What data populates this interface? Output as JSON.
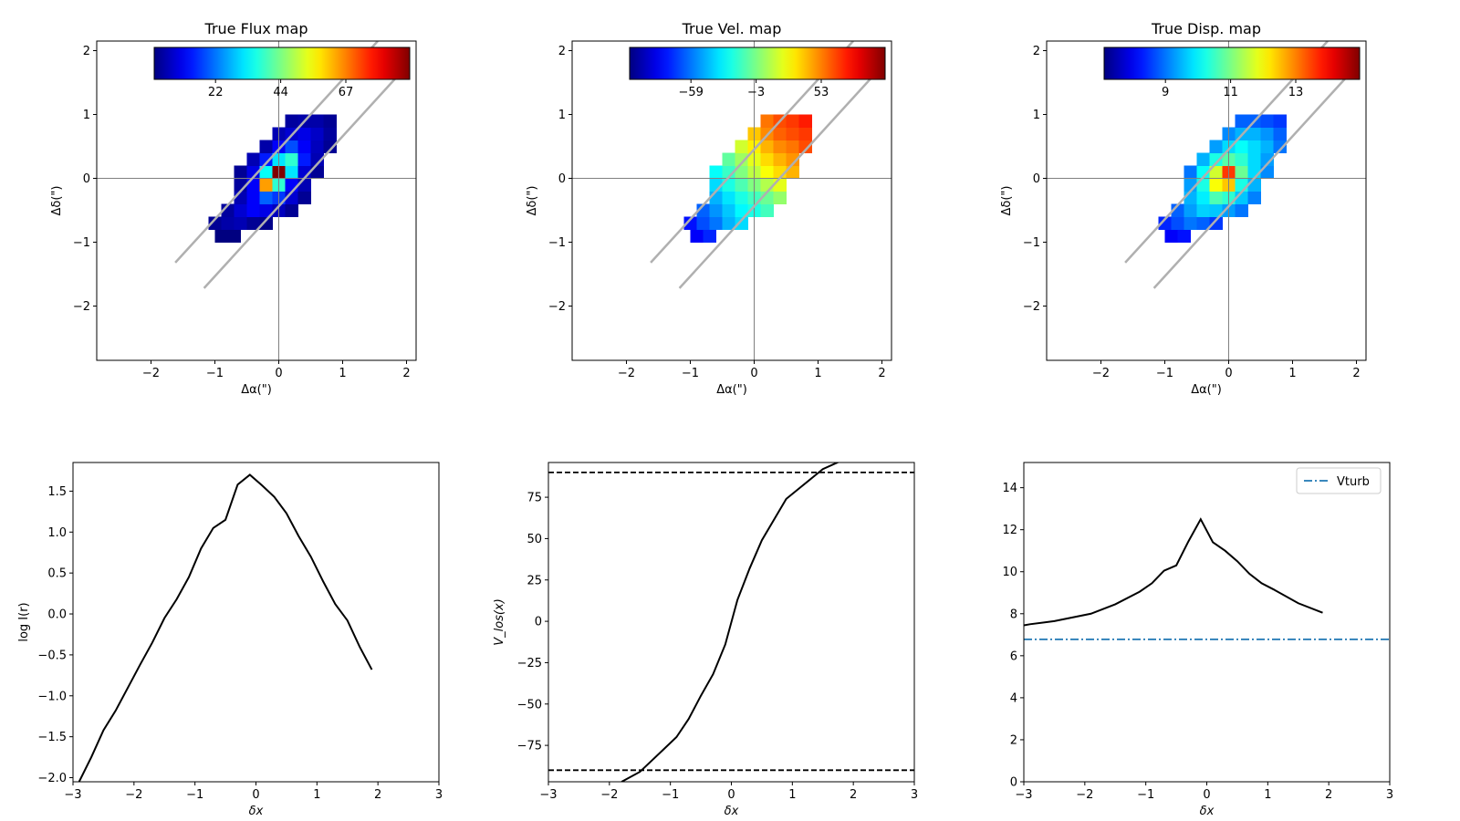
{
  "chart_data": [
    {
      "type": "heatmap",
      "title": "True Flux map",
      "xlabel": "Δα(\")",
      "ylabel": "Δδ(\")",
      "xlim": [
        -2.85,
        2.15
      ],
      "ylim": [
        -2.85,
        2.15
      ],
      "xticks": [
        -2,
        -1,
        0,
        1,
        2
      ],
      "yticks": [
        -2,
        -1,
        0,
        1,
        2
      ],
      "colormap": "jet",
      "colorbar_ticks": [
        "22",
        "44",
        "67"
      ],
      "colorbar_tick_fraction": [
        0.24,
        0.495,
        0.75
      ],
      "colorbar_location": "top",
      "pixel_size": 0.2,
      "cells": [
        [
          -0.9,
          -0.9,
          0.0
        ],
        [
          -0.7,
          -0.9,
          0.0
        ],
        [
          -1.0,
          -0.7,
          0.02
        ],
        [
          -0.8,
          -0.7,
          0.04
        ],
        [
          -0.6,
          -0.7,
          0.05
        ],
        [
          -0.4,
          -0.7,
          0.02
        ],
        [
          -0.2,
          -0.7,
          0.01
        ],
        [
          -0.8,
          -0.5,
          0.03
        ],
        [
          -0.6,
          -0.5,
          0.08
        ],
        [
          -0.4,
          -0.5,
          0.12
        ],
        [
          -0.2,
          -0.5,
          0.1
        ],
        [
          0.0,
          -0.5,
          0.06
        ],
        [
          0.2,
          -0.5,
          0.02
        ],
        [
          -0.6,
          -0.3,
          0.05
        ],
        [
          -0.4,
          -0.3,
          0.12
        ],
        [
          -0.2,
          -0.3,
          0.22
        ],
        [
          0.0,
          -0.3,
          0.18
        ],
        [
          0.2,
          -0.3,
          0.08
        ],
        [
          0.4,
          -0.3,
          0.02
        ],
        [
          -0.6,
          -0.1,
          0.03
        ],
        [
          -0.4,
          -0.1,
          0.12
        ],
        [
          -0.2,
          -0.1,
          0.72
        ],
        [
          0.0,
          -0.1,
          0.42
        ],
        [
          0.2,
          -0.1,
          0.12
        ],
        [
          0.4,
          -0.1,
          0.05
        ],
        [
          -0.6,
          0.1,
          0.02
        ],
        [
          -0.4,
          0.1,
          0.1
        ],
        [
          -0.2,
          0.1,
          0.38
        ],
        [
          0.0,
          0.1,
          1.0
        ],
        [
          0.2,
          0.1,
          0.35
        ],
        [
          0.4,
          0.1,
          0.08
        ],
        [
          0.6,
          0.1,
          0.02
        ],
        [
          -0.4,
          0.3,
          0.05
        ],
        [
          -0.2,
          0.3,
          0.15
        ],
        [
          0.0,
          0.3,
          0.35
        ],
        [
          0.2,
          0.3,
          0.42
        ],
        [
          0.4,
          0.3,
          0.15
        ],
        [
          0.6,
          0.3,
          0.05
        ],
        [
          -0.2,
          0.5,
          0.04
        ],
        [
          0.0,
          0.5,
          0.12
        ],
        [
          0.2,
          0.5,
          0.2
        ],
        [
          0.4,
          0.5,
          0.12
        ],
        [
          0.6,
          0.5,
          0.06
        ],
        [
          0.8,
          0.5,
          0.02
        ],
        [
          0.0,
          0.7,
          0.05
        ],
        [
          0.2,
          0.7,
          0.08
        ],
        [
          0.4,
          0.7,
          0.1
        ],
        [
          0.6,
          0.7,
          0.07
        ],
        [
          0.8,
          0.7,
          0.03
        ],
        [
          0.2,
          0.9,
          0.03
        ],
        [
          0.4,
          0.9,
          0.04
        ],
        [
          0.6,
          0.9,
          0.04
        ],
        [
          0.8,
          0.9,
          0.02
        ]
      ],
      "slit_lines": [
        {
          "x": [
            -1.62,
            1.55
          ],
          "y": [
            -1.32,
            2.15
          ]
        },
        {
          "x": [
            -1.17,
            1.95
          ],
          "y": [
            -1.72,
            1.7
          ]
        }
      ],
      "crosshair": true
    },
    {
      "type": "heatmap",
      "title": "True Vel. map",
      "xlabel": "Δα(\")",
      "ylabel": "Δδ(\")",
      "xlim": [
        -2.85,
        2.15
      ],
      "ylim": [
        -2.85,
        2.15
      ],
      "xticks": [
        -2,
        -1,
        0,
        1,
        2
      ],
      "yticks": [
        -2,
        -1,
        0,
        1,
        2
      ],
      "colormap": "jet",
      "colorbar_ticks": [
        "−59",
        "−3",
        "53"
      ],
      "colorbar_tick_fraction": [
        0.24,
        0.495,
        0.75
      ],
      "colorbar_location": "top",
      "pixel_size": 0.2,
      "cells": [
        [
          -0.9,
          -0.9,
          0.12
        ],
        [
          -0.7,
          -0.9,
          0.16
        ],
        [
          -1.0,
          -0.7,
          0.14
        ],
        [
          -0.8,
          -0.7,
          0.2
        ],
        [
          -0.6,
          -0.7,
          0.24
        ],
        [
          -0.4,
          -0.7,
          0.3
        ],
        [
          -0.2,
          -0.7,
          0.34
        ],
        [
          -0.8,
          -0.5,
          0.22
        ],
        [
          -0.6,
          -0.5,
          0.27
        ],
        [
          -0.4,
          -0.5,
          0.32
        ],
        [
          -0.2,
          -0.5,
          0.37
        ],
        [
          0.0,
          -0.5,
          0.4
        ],
        [
          0.2,
          -0.5,
          0.44
        ],
        [
          -0.6,
          -0.3,
          0.3
        ],
        [
          -0.4,
          -0.3,
          0.35
        ],
        [
          -0.2,
          -0.3,
          0.4
        ],
        [
          0.0,
          -0.3,
          0.44
        ],
        [
          0.2,
          -0.3,
          0.48
        ],
        [
          0.4,
          -0.3,
          0.52
        ],
        [
          -0.6,
          -0.1,
          0.34
        ],
        [
          -0.4,
          -0.1,
          0.4
        ],
        [
          -0.2,
          -0.1,
          0.45
        ],
        [
          0.0,
          -0.1,
          0.5
        ],
        [
          0.2,
          -0.1,
          0.55
        ],
        [
          0.4,
          -0.1,
          0.6
        ],
        [
          -0.6,
          0.1,
          0.38
        ],
        [
          -0.4,
          0.1,
          0.43
        ],
        [
          -0.2,
          0.1,
          0.5
        ],
        [
          0.0,
          0.1,
          0.56
        ],
        [
          0.2,
          0.1,
          0.62
        ],
        [
          0.4,
          0.1,
          0.66
        ],
        [
          0.6,
          0.1,
          0.7
        ],
        [
          -0.4,
          0.3,
          0.47
        ],
        [
          -0.2,
          0.3,
          0.53
        ],
        [
          0.0,
          0.3,
          0.6
        ],
        [
          0.2,
          0.3,
          0.66
        ],
        [
          0.4,
          0.3,
          0.7
        ],
        [
          0.6,
          0.3,
          0.73
        ],
        [
          -0.2,
          0.5,
          0.58
        ],
        [
          0.0,
          0.5,
          0.64
        ],
        [
          0.2,
          0.5,
          0.7
        ],
        [
          0.4,
          0.5,
          0.74
        ],
        [
          0.6,
          0.5,
          0.76
        ],
        [
          0.8,
          0.5,
          0.8
        ],
        [
          0.0,
          0.7,
          0.68
        ],
        [
          0.2,
          0.7,
          0.74
        ],
        [
          0.4,
          0.7,
          0.78
        ],
        [
          0.6,
          0.7,
          0.8
        ],
        [
          0.8,
          0.7,
          0.82
        ],
        [
          0.2,
          0.9,
          0.76
        ],
        [
          0.4,
          0.9,
          0.8
        ],
        [
          0.6,
          0.9,
          0.82
        ],
        [
          0.8,
          0.9,
          0.85
        ]
      ],
      "slit_lines": [
        {
          "x": [
            -1.62,
            1.55
          ],
          "y": [
            -1.32,
            2.15
          ]
        },
        {
          "x": [
            -1.17,
            1.95
          ],
          "y": [
            -1.72,
            1.7
          ]
        }
      ],
      "crosshair": true
    },
    {
      "type": "heatmap",
      "title": "True Disp. map",
      "xlabel": "Δα(\")",
      "ylabel": "Δδ(\")",
      "xlim": [
        -2.85,
        2.15
      ],
      "ylim": [
        -2.85,
        2.15
      ],
      "xticks": [
        -2,
        -1,
        0,
        1,
        2
      ],
      "yticks": [
        -2,
        -1,
        0,
        1,
        2
      ],
      "colormap": "jet",
      "colorbar_ticks": [
        "9",
        "11",
        "13"
      ],
      "colorbar_tick_fraction": [
        0.24,
        0.495,
        0.75
      ],
      "colorbar_location": "top",
      "pixel_size": 0.2,
      "cells": [
        [
          -0.9,
          -0.9,
          0.12
        ],
        [
          -0.7,
          -0.9,
          0.14
        ],
        [
          -1.0,
          -0.7,
          0.16
        ],
        [
          -0.8,
          -0.7,
          0.2
        ],
        [
          -0.6,
          -0.7,
          0.24
        ],
        [
          -0.4,
          -0.7,
          0.22
        ],
        [
          -0.2,
          -0.7,
          0.18
        ],
        [
          -0.8,
          -0.5,
          0.22
        ],
        [
          -0.6,
          -0.5,
          0.28
        ],
        [
          -0.4,
          -0.5,
          0.33
        ],
        [
          -0.2,
          -0.5,
          0.32
        ],
        [
          0.0,
          -0.5,
          0.28
        ],
        [
          0.2,
          -0.5,
          0.24
        ],
        [
          -0.6,
          -0.3,
          0.3
        ],
        [
          -0.4,
          -0.3,
          0.36
        ],
        [
          -0.2,
          -0.3,
          0.45
        ],
        [
          0.0,
          -0.3,
          0.42
        ],
        [
          0.2,
          -0.3,
          0.32
        ],
        [
          0.4,
          -0.3,
          0.25
        ],
        [
          -0.6,
          -0.1,
          0.28
        ],
        [
          -0.4,
          -0.1,
          0.4
        ],
        [
          -0.2,
          -0.1,
          0.62
        ],
        [
          0.0,
          -0.1,
          0.68
        ],
        [
          0.2,
          -0.1,
          0.4
        ],
        [
          0.4,
          -0.1,
          0.3
        ],
        [
          -0.6,
          0.1,
          0.24
        ],
        [
          -0.4,
          0.1,
          0.38
        ],
        [
          -0.2,
          0.1,
          0.58
        ],
        [
          0.0,
          0.1,
          0.82
        ],
        [
          0.2,
          0.1,
          0.48
        ],
        [
          0.4,
          0.1,
          0.34
        ],
        [
          0.6,
          0.1,
          0.26
        ],
        [
          -0.4,
          0.3,
          0.3
        ],
        [
          -0.2,
          0.3,
          0.4
        ],
        [
          0.0,
          0.3,
          0.46
        ],
        [
          0.2,
          0.3,
          0.42
        ],
        [
          0.4,
          0.3,
          0.34
        ],
        [
          0.6,
          0.3,
          0.28
        ],
        [
          -0.2,
          0.5,
          0.28
        ],
        [
          0.0,
          0.5,
          0.34
        ],
        [
          0.2,
          0.5,
          0.38
        ],
        [
          0.4,
          0.5,
          0.34
        ],
        [
          0.6,
          0.5,
          0.3
        ],
        [
          0.8,
          0.5,
          0.24
        ],
        [
          0.0,
          0.7,
          0.26
        ],
        [
          0.2,
          0.7,
          0.3
        ],
        [
          0.4,
          0.7,
          0.3
        ],
        [
          0.6,
          0.7,
          0.27
        ],
        [
          0.8,
          0.7,
          0.22
        ],
        [
          0.2,
          0.9,
          0.22
        ],
        [
          0.4,
          0.9,
          0.22
        ],
        [
          0.6,
          0.9,
          0.2
        ],
        [
          0.8,
          0.9,
          0.18
        ]
      ],
      "slit_lines": [
        {
          "x": [
            -1.62,
            1.55
          ],
          "y": [
            -1.32,
            2.15
          ]
        },
        {
          "x": [
            -1.17,
            1.95
          ],
          "y": [
            -1.72,
            1.7
          ]
        }
      ],
      "crosshair": true
    },
    {
      "type": "line",
      "title": "",
      "xlabel": "δx",
      "ylabel": "log I(r)",
      "xlim": [
        -3,
        3
      ],
      "ylim": [
        -2.05,
        1.85
      ],
      "xticks": [
        -3,
        -2,
        -1,
        0,
        1,
        2,
        3
      ],
      "yticks": [
        -2.0,
        -1.5,
        -1.0,
        -0.5,
        0.0,
        0.5,
        1.0,
        1.5
      ],
      "ytick_labels": [
        "−2.0",
        "−1.5",
        "−1.0",
        "−0.5",
        "0.0",
        "0.5",
        "1.0",
        "1.5"
      ],
      "series": [
        {
          "x": [
            -2.9,
            -2.7,
            -2.5,
            -2.3,
            -2.1,
            -1.9,
            -1.7,
            -1.5,
            -1.3,
            -1.1,
            -0.9,
            -0.7,
            -0.5,
            -0.3,
            -0.1,
            0.1,
            0.3,
            0.5,
            0.7,
            0.9,
            1.1,
            1.3,
            1.5,
            1.7,
            1.9
          ],
          "y": [
            -2.05,
            -1.75,
            -1.42,
            -1.18,
            -0.9,
            -0.62,
            -0.35,
            -0.05,
            0.18,
            0.45,
            0.8,
            1.05,
            1.15,
            1.58,
            1.7,
            1.57,
            1.43,
            1.23,
            0.95,
            0.7,
            0.4,
            0.12,
            -0.08,
            -0.4,
            -0.68
          ],
          "color": "#000000",
          "style": "solid"
        }
      ]
    },
    {
      "type": "line",
      "title": "",
      "xlabel": "δx",
      "ylabel": "V_los(x)",
      "xlim": [
        -3,
        3
      ],
      "ylim": [
        -97,
        96
      ],
      "xticks": [
        -3,
        -2,
        -1,
        0,
        1,
        2,
        3
      ],
      "yticks": [
        -75,
        -50,
        -25,
        0,
        25,
        50,
        75
      ],
      "ytick_labels": [
        "−75",
        "−50",
        "−25",
        "0",
        "25",
        "50",
        "75"
      ],
      "series": [
        {
          "x": [
            -1.8,
            -1.5,
            -1.3,
            -1.1,
            -0.9,
            -0.7,
            -0.5,
            -0.3,
            -0.1,
            0.1,
            0.3,
            0.5,
            0.9,
            1.1,
            1.5,
            1.8
          ],
          "y": [
            -97,
            -91,
            -84,
            -77,
            -70,
            -59,
            -45,
            -32,
            -14,
            13,
            32,
            49,
            74,
            80,
            92,
            97
          ],
          "color": "#000000",
          "style": "solid"
        }
      ],
      "hlines": [
        {
          "y": 90,
          "color": "#000000",
          "style": "dashed"
        },
        {
          "y": -90,
          "color": "#000000",
          "style": "dashed"
        }
      ]
    },
    {
      "type": "line",
      "title": "",
      "xlabel": "δx",
      "ylabel": "",
      "xlim": [
        -3,
        3
      ],
      "ylim": [
        0,
        15.2
      ],
      "xticks": [
        -3,
        -2,
        -1,
        0,
        1,
        2,
        3
      ],
      "yticks": [
        0,
        2,
        4,
        6,
        8,
        10,
        12,
        14
      ],
      "ytick_labels": [
        "0",
        "2",
        "4",
        "6",
        "8",
        "10",
        "12",
        "14"
      ],
      "series": [
        {
          "x": [
            -3.0,
            -2.9,
            -2.5,
            -1.9,
            -1.5,
            -1.1,
            -0.9,
            -0.7,
            -0.5,
            -0.3,
            -0.1,
            0.1,
            0.3,
            0.5,
            0.7,
            0.9,
            1.1,
            1.5,
            1.9
          ],
          "y": [
            7.45,
            7.5,
            7.65,
            8.0,
            8.45,
            9.05,
            9.45,
            10.05,
            10.3,
            11.45,
            12.5,
            11.4,
            11.0,
            10.5,
            9.9,
            9.45,
            9.15,
            8.5,
            8.05
          ],
          "color": "#000000",
          "style": "solid"
        }
      ],
      "hlines": [
        {
          "y": 6.78,
          "color": "#1f77b4",
          "style": "dashdot",
          "name": "Vturb"
        }
      ],
      "legend": {
        "entries": [
          "Vturb"
        ],
        "location": "upper right"
      }
    }
  ]
}
